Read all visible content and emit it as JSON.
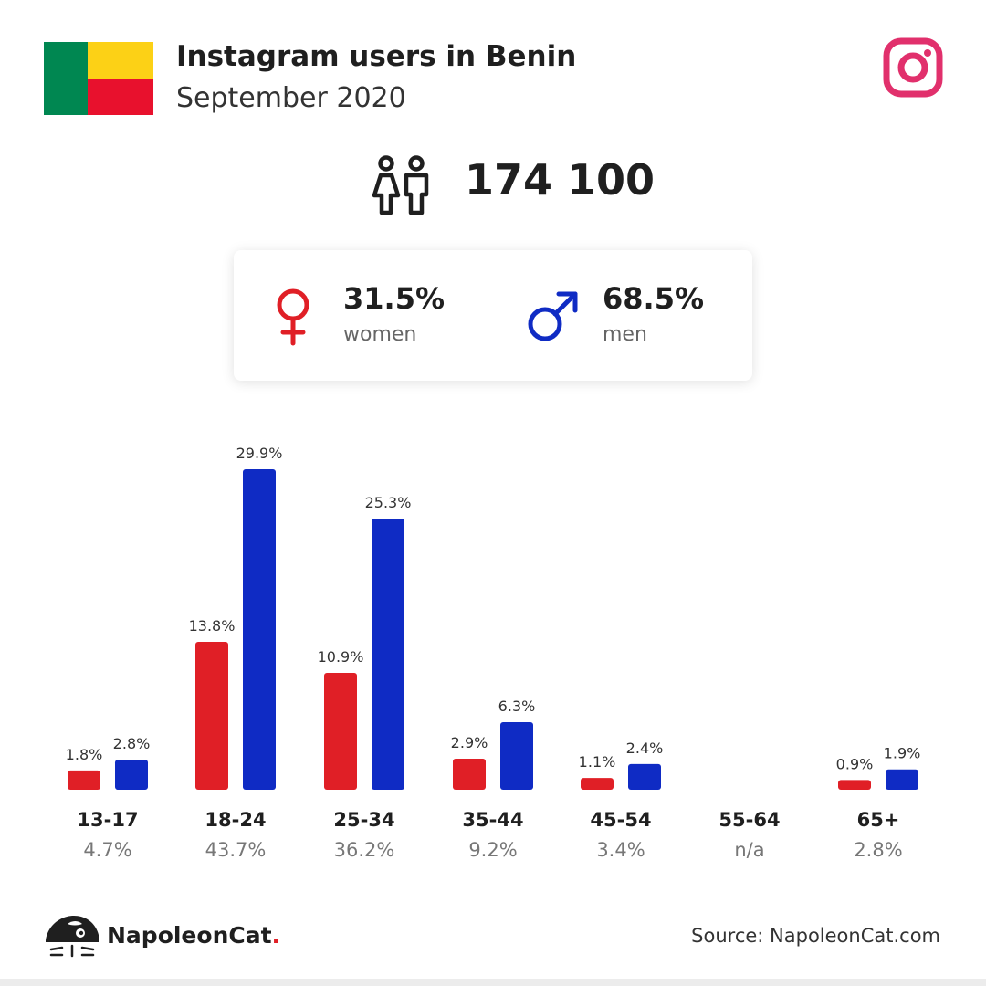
{
  "header": {
    "title": "Instagram users in Benin",
    "subtitle": "September 2020"
  },
  "flag": {
    "colors": [
      "#008751",
      "#fcd116",
      "#e8112d"
    ]
  },
  "icons": {
    "brand": "instagram-icon",
    "people": "people-icon",
    "female": "female-symbol-icon",
    "male": "male-symbol-icon",
    "logo": "napoleoncat-logo-icon"
  },
  "total_users": "174 100",
  "gender": {
    "women": {
      "pct": "31.5%",
      "label": "women"
    },
    "men": {
      "pct": "68.5%",
      "label": "men"
    }
  },
  "colors": {
    "women": "#e01f26",
    "men": "#0f2bc4",
    "instagram": "#e1306c"
  },
  "chart_data": {
    "type": "bar",
    "categories": [
      "13-17",
      "18-24",
      "25-34",
      "35-44",
      "45-54",
      "55-64",
      "65+"
    ],
    "category_totals": [
      "4.7%",
      "43.7%",
      "36.2%",
      "9.2%",
      "3.4%",
      "n/a",
      "2.8%"
    ],
    "series": [
      {
        "name": "women",
        "values": [
          1.8,
          13.8,
          10.9,
          2.9,
          1.1,
          null,
          0.9
        ],
        "labels": [
          "1.8%",
          "13.8%",
          "10.9%",
          "2.9%",
          "1.1%",
          "",
          "0.9%"
        ]
      },
      {
        "name": "men",
        "values": [
          2.8,
          29.9,
          25.3,
          6.3,
          2.4,
          null,
          1.9
        ],
        "labels": [
          "2.8%",
          "29.9%",
          "25.3%",
          "6.3%",
          "2.4%",
          "",
          "1.9%"
        ]
      }
    ],
    "ylim": [
      0,
      29.9
    ],
    "grid": false
  },
  "footer": {
    "brand": "NapoleonCat",
    "brand_dot": ".",
    "source": "Source: NapoleonCat.com"
  }
}
